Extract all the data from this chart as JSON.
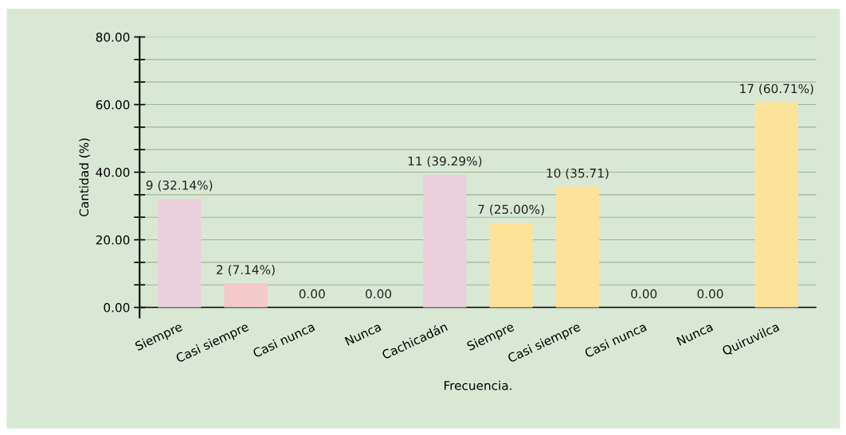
{
  "chart_data": {
    "type": "bar",
    "xlabel": "Frecuencia.",
    "ylabel": "Cantidad (%)",
    "categories": [
      "Siempre",
      "Casi siempre",
      "Casi nunca",
      "Nunca",
      "Cachicadán",
      "Siempre",
      "Casi siempre",
      "Casi nunca",
      "Nunca",
      "Quiruvilca"
    ],
    "values": [
      32.14,
      7.14,
      0,
      0,
      39.29,
      25.0,
      35.71,
      0,
      0,
      60.71
    ],
    "colors": [
      "#e9d0dc",
      "#f4c9c9",
      "#8db8e6",
      "#8db8e6",
      "#e9d0dc",
      "#fde39a",
      "#fde39a",
      "#8db8e6",
      "#8db8e6",
      "#fde39a"
    ],
    "value_labels": [
      "9 (32.14%)",
      "2 (7.14%)",
      "0.00",
      "0.00",
      "11 (39.29%)",
      "7 (25.00%)",
      "10 (35.71)",
      "0.00",
      "0.00",
      "17 (60.71%)"
    ],
    "ylim": [
      -3,
      80
    ],
    "yticks": [
      {
        "value": 0,
        "label": "0.00"
      },
      {
        "value": 6.67,
        "label": null
      },
      {
        "value": 13.33,
        "label": null
      },
      {
        "value": 20,
        "label": "20.00"
      },
      {
        "value": 26.67,
        "label": null
      },
      {
        "value": 33.33,
        "label": null
      },
      {
        "value": 40,
        "label": "40.00"
      },
      {
        "value": 46.67,
        "label": null
      },
      {
        "value": 53.33,
        "label": null
      },
      {
        "value": 60,
        "label": "60.00"
      },
      {
        "value": 66.67,
        "label": null
      },
      {
        "value": 73.33,
        "label": null
      },
      {
        "value": 80,
        "label": "80.00"
      }
    ],
    "grid": "y"
  }
}
